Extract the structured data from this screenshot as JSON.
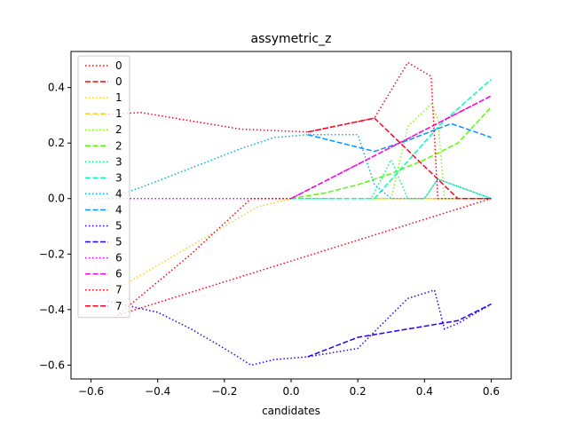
{
  "chart_data": {
    "type": "line",
    "title": "assymetric_z",
    "xlabel": "candidates",
    "ylabel": "",
    "xlim": [
      -0.66,
      0.66
    ],
    "ylim": [
      -0.65,
      0.53
    ],
    "xticks": [
      -0.6,
      -0.4,
      -0.2,
      0.0,
      0.2,
      0.4,
      0.6
    ],
    "xtick_labels": [
      "−0.6",
      "−0.4",
      "−0.2",
      "0.0",
      "0.2",
      "0.4",
      "0.6"
    ],
    "yticks": [
      -0.6,
      -0.4,
      -0.2,
      0.0,
      0.2,
      0.4
    ],
    "ytick_labels": [
      "−0.6",
      "−0.4",
      "−0.2",
      "0.0",
      "0.2",
      "0.4"
    ],
    "legend_position": "upper-left",
    "series": [
      {
        "name": "0",
        "style": "dotted",
        "color": "#ff0000",
        "x": [
          0.0,
          0.6
        ],
        "y": [
          0.0,
          0.0
        ]
      },
      {
        "name": "0",
        "style": "dashed",
        "color": "#ff0000",
        "x": [
          0.0,
          0.6
        ],
        "y": [
          0.0,
          0.0
        ]
      },
      {
        "name": "1",
        "style": "dotted",
        "color": "#ffd400",
        "x": [
          -0.6,
          -0.5,
          -0.4,
          -0.3,
          -0.2,
          -0.1,
          0.0,
          0.6
        ],
        "y": [
          -0.35,
          -0.31,
          -0.24,
          -0.17,
          -0.1,
          -0.03,
          0.0,
          0.0
        ]
      },
      {
        "name": "1",
        "style": "dashed",
        "color": "#ffd400",
        "x": [
          0.0,
          0.6
        ],
        "y": [
          0.0,
          0.0
        ]
      },
      {
        "name": "2",
        "style": "dotted",
        "color": "#80ff00",
        "x": [
          0.0,
          0.3,
          0.35,
          0.42,
          0.44,
          0.46,
          0.6
        ],
        "y": [
          0.0,
          0.0,
          0.26,
          0.34,
          0.29,
          0.0,
          0.0
        ]
      },
      {
        "name": "2",
        "style": "dashed",
        "color": "#55ff00",
        "x": [
          0.0,
          0.1,
          0.2,
          0.3,
          0.4,
          0.5,
          0.6
        ],
        "y": [
          0.0,
          0.02,
          0.05,
          0.09,
          0.14,
          0.2,
          0.33
        ]
      },
      {
        "name": "3",
        "style": "dotted",
        "color": "#00ff80",
        "x": [
          0.0,
          0.24,
          0.3,
          0.35,
          0.4,
          0.44,
          0.6
        ],
        "y": [
          0.0,
          0.0,
          0.14,
          0.0,
          0.0,
          0.07,
          0.0
        ]
      },
      {
        "name": "3",
        "style": "dashed",
        "color": "#00ffb0",
        "x": [
          0.0,
          0.25,
          0.45,
          0.6
        ],
        "y": [
          0.0,
          0.0,
          0.27,
          0.43
        ]
      },
      {
        "name": "4",
        "style": "dotted",
        "color": "#00b4e6",
        "x": [
          -0.55,
          -0.45,
          -0.3,
          -0.15,
          -0.05,
          0.05,
          0.2,
          0.25,
          0.3,
          0.4,
          0.44,
          0.6
        ],
        "y": [
          0.0,
          0.04,
          0.11,
          0.18,
          0.22,
          0.23,
          0.23,
          0.05,
          0.0,
          0.0,
          0.07,
          0.0
        ]
      },
      {
        "name": "4",
        "style": "dashed",
        "color": "#0096ff",
        "x": [
          0.05,
          0.25,
          0.35,
          0.48,
          0.6
        ],
        "y": [
          0.23,
          0.17,
          0.21,
          0.27,
          0.22
        ]
      },
      {
        "name": "5",
        "style": "dotted",
        "color": "#2400ff",
        "x": [
          -0.55,
          -0.4,
          -0.3,
          -0.2,
          -0.12,
          -0.05,
          0.05,
          0.2,
          0.25,
          0.35,
          0.43,
          0.46,
          0.5,
          0.6
        ],
        "y": [
          -0.37,
          -0.41,
          -0.47,
          -0.54,
          -0.6,
          -0.58,
          -0.57,
          -0.54,
          -0.48,
          -0.36,
          -0.33,
          -0.47,
          -0.45,
          -0.38
        ]
      },
      {
        "name": "5",
        "style": "dashed",
        "color": "#2400ff",
        "x": [
          0.05,
          0.2,
          0.4,
          0.5,
          0.6
        ],
        "y": [
          -0.57,
          -0.5,
          -0.46,
          -0.44,
          -0.38
        ]
      },
      {
        "name": "6",
        "style": "dotted",
        "color": "#e600ff",
        "x": [
          -0.6,
          -0.3,
          0.0,
          0.6
        ],
        "y": [
          0.0,
          0.0,
          0.0,
          0.37
        ]
      },
      {
        "name": "6",
        "style": "dashed",
        "color": "#ff00e0",
        "x": [
          0.0,
          0.6
        ],
        "y": [
          0.0,
          0.37
        ]
      },
      {
        "name": "7",
        "style": "dotted",
        "color": "#ff0020",
        "x": [
          -0.6,
          -0.45,
          -0.3,
          -0.15,
          0.05,
          0.25,
          0.35,
          0.42,
          0.44,
          0.6,
          -0.52,
          -0.3,
          -0.12,
          0.0
        ],
        "y": [
          0.3,
          0.31,
          0.28,
          0.25,
          0.24,
          0.29,
          0.49,
          0.44,
          0.0,
          0.0,
          -0.42,
          -0.2,
          0.0,
          0.0
        ]
      },
      {
        "name": "7",
        "style": "dashed",
        "color": "#ff0020",
        "x": [
          0.05,
          0.25,
          0.5,
          0.6
        ],
        "y": [
          0.24,
          0.29,
          0.0,
          0.0
        ]
      }
    ]
  }
}
